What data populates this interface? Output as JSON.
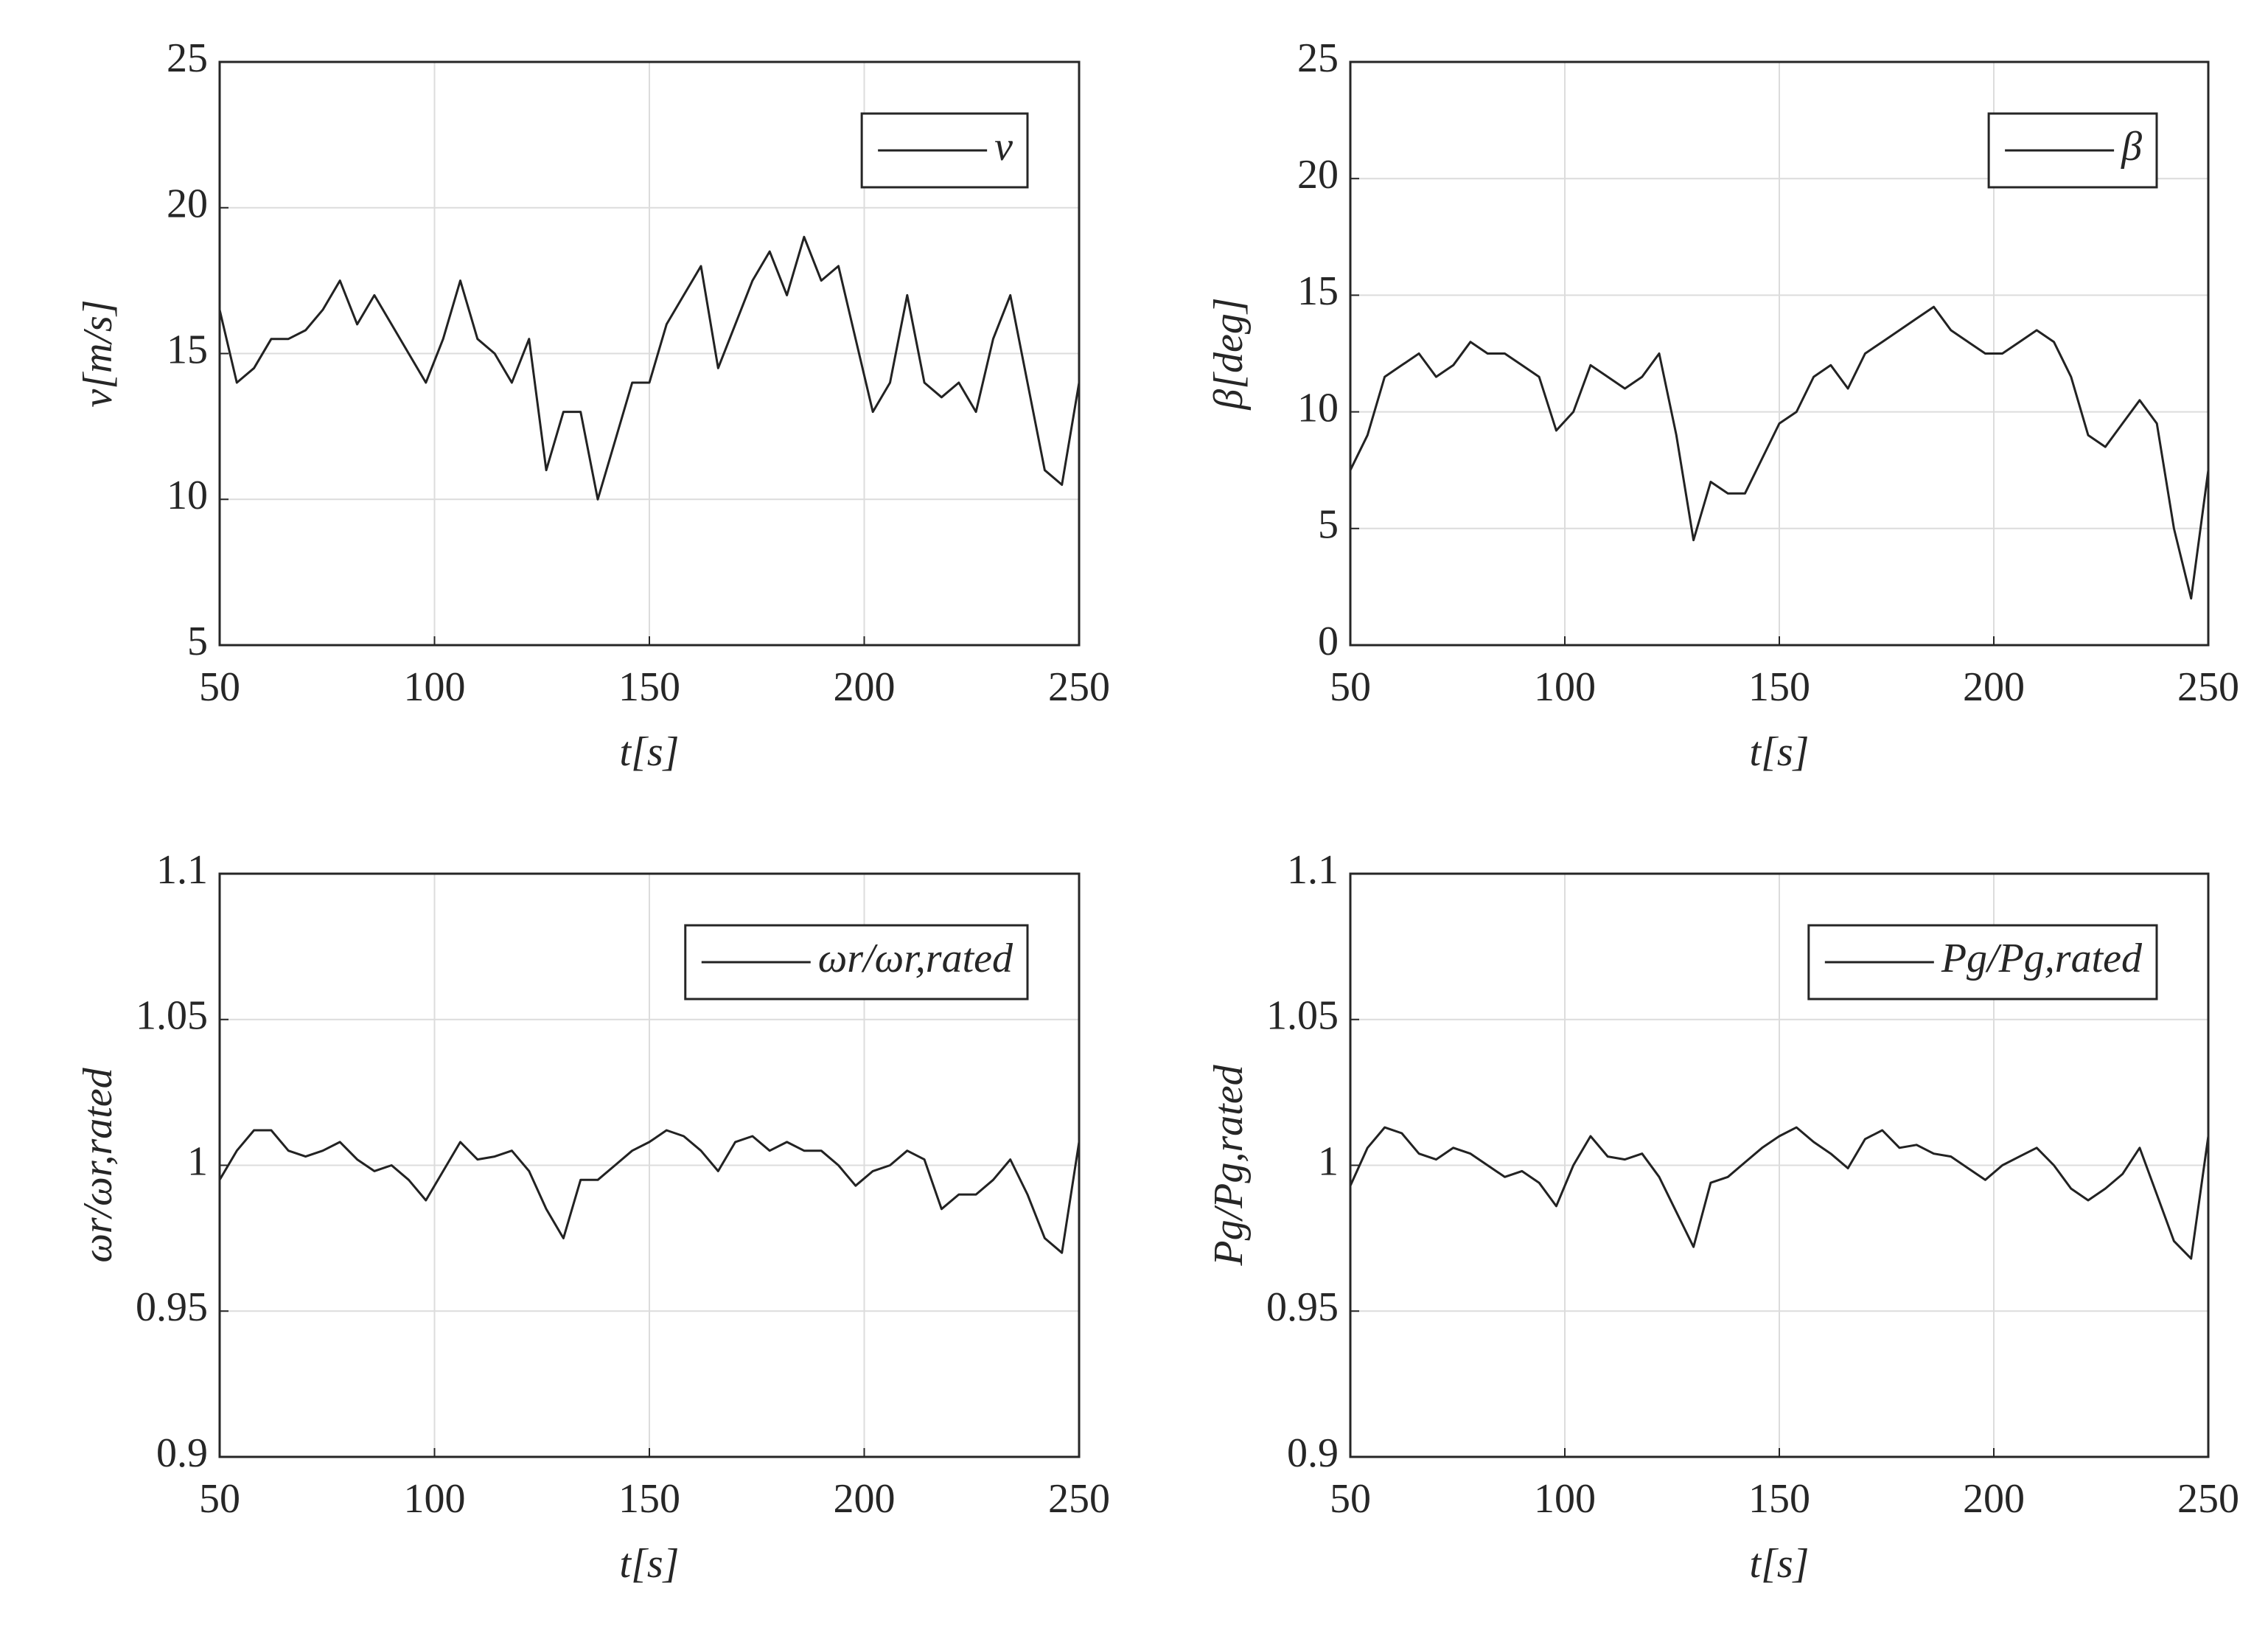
{
  "charts": [
    {
      "type": "line",
      "xlabel": "t[s]",
      "ylabel": "v[m/s]",
      "xlim": [
        50,
        250
      ],
      "ylim": [
        5,
        25
      ],
      "xticks": [
        50,
        100,
        150,
        200,
        250
      ],
      "yticks": [
        5,
        10,
        15,
        20,
        25
      ],
      "grid": true,
      "legend": "northeast",
      "x": [
        50,
        54,
        58,
        62,
        66,
        70,
        74,
        78,
        82,
        86,
        90,
        94,
        98,
        102,
        106,
        110,
        114,
        118,
        122,
        126,
        130,
        134,
        138,
        142,
        146,
        150,
        154,
        158,
        162,
        166,
        170,
        174,
        178,
        182,
        186,
        190,
        194,
        198,
        202,
        206,
        210,
        214,
        218,
        222,
        226,
        230,
        234,
        238,
        242,
        246,
        250
      ],
      "series": [
        {
          "name": "v",
          "color": "#222222",
          "values": [
            16.5,
            14,
            14.5,
            15.5,
            15.5,
            15.8,
            16.5,
            17.5,
            16,
            17,
            16,
            15,
            14,
            15.5,
            17.5,
            15.5,
            15,
            14,
            15.5,
            11,
            13,
            13,
            10,
            12,
            14,
            14,
            16,
            17,
            18,
            14.5,
            16,
            17.5,
            18.5,
            17,
            19,
            17.5,
            18,
            15.5,
            13,
            14,
            17,
            14,
            13.5,
            14,
            13,
            15.5,
            17,
            14,
            11,
            10.5,
            14
          ]
        }
      ]
    },
    {
      "type": "line",
      "xlabel": "t[s]",
      "ylabel": "β[deg]",
      "xlim": [
        50,
        250
      ],
      "ylim": [
        0,
        25
      ],
      "xticks": [
        50,
        100,
        150,
        200,
        250
      ],
      "yticks": [
        0,
        5,
        10,
        15,
        20,
        25
      ],
      "grid": true,
      "legend": "northeast",
      "x": [
        50,
        54,
        58,
        62,
        66,
        70,
        74,
        78,
        82,
        86,
        90,
        94,
        98,
        102,
        106,
        110,
        114,
        118,
        122,
        126,
        130,
        134,
        138,
        142,
        146,
        150,
        154,
        158,
        162,
        166,
        170,
        174,
        178,
        182,
        186,
        190,
        194,
        198,
        202,
        206,
        210,
        214,
        218,
        222,
        226,
        230,
        234,
        238,
        242,
        246,
        250
      ],
      "series": [
        {
          "name": "β",
          "color": "#222222",
          "values": [
            7.5,
            9,
            11.5,
            12,
            12.5,
            11.5,
            12,
            13,
            12.5,
            12.5,
            12,
            11.5,
            9.2,
            10,
            12,
            11.5,
            11,
            11.5,
            12.5,
            9,
            4.5,
            7,
            6.5,
            6.5,
            8,
            9.5,
            10,
            11.5,
            12,
            11,
            12.5,
            13,
            13.5,
            14,
            14.5,
            13.5,
            13,
            12.5,
            12.5,
            13,
            13.5,
            13,
            11.5,
            9,
            8.5,
            9.5,
            10.5,
            9.5,
            5,
            2,
            7.5
          ]
        }
      ]
    },
    {
      "type": "line",
      "xlabel": "t[s]",
      "ylabel": "ωr/ωr,rated",
      "xlim": [
        50,
        250
      ],
      "ylim": [
        0.9,
        1.1
      ],
      "xticks": [
        50,
        100,
        150,
        200,
        250
      ],
      "yticks": [
        0.9,
        0.95,
        1,
        1.05,
        1.1
      ],
      "grid": true,
      "legend": "northeast",
      "x": [
        50,
        54,
        58,
        62,
        66,
        70,
        74,
        78,
        82,
        86,
        90,
        94,
        98,
        102,
        106,
        110,
        114,
        118,
        122,
        126,
        130,
        134,
        138,
        142,
        146,
        150,
        154,
        158,
        162,
        166,
        170,
        174,
        178,
        182,
        186,
        190,
        194,
        198,
        202,
        206,
        210,
        214,
        218,
        222,
        226,
        230,
        234,
        238,
        242,
        246,
        250
      ],
      "series": [
        {
          "name": "ωr/ωr,rated",
          "color": "#222222",
          "values": [
            0.995,
            1.005,
            1.012,
            1.012,
            1.005,
            1.003,
            1.005,
            1.008,
            1.002,
            0.998,
            1,
            0.995,
            0.988,
            0.998,
            1.008,
            1.002,
            1.003,
            1.005,
            0.998,
            0.985,
            0.975,
            0.995,
            0.995,
            1,
            1.005,
            1.008,
            1.012,
            1.01,
            1.005,
            0.998,
            1.008,
            1.01,
            1.005,
            1.008,
            1.005,
            1.005,
            1,
            0.993,
            0.998,
            1,
            1.005,
            1.002,
            0.985,
            0.99,
            0.99,
            0.995,
            1.002,
            0.99,
            0.975,
            0.97,
            1.008
          ]
        }
      ]
    },
    {
      "type": "line",
      "xlabel": "t[s]",
      "ylabel": "Pg/Pg,rated",
      "xlim": [
        50,
        250
      ],
      "ylim": [
        0.9,
        1.1
      ],
      "xticks": [
        50,
        100,
        150,
        200,
        250
      ],
      "yticks": [
        0.9,
        0.95,
        1,
        1.05,
        1.1
      ],
      "grid": true,
      "legend": "northeast",
      "x": [
        50,
        54,
        58,
        62,
        66,
        70,
        74,
        78,
        82,
        86,
        90,
        94,
        98,
        102,
        106,
        110,
        114,
        118,
        122,
        126,
        130,
        134,
        138,
        142,
        146,
        150,
        154,
        158,
        162,
        166,
        170,
        174,
        178,
        182,
        186,
        190,
        194,
        198,
        202,
        206,
        210,
        214,
        218,
        222,
        226,
        230,
        234,
        238,
        242,
        246,
        250
      ],
      "series": [
        {
          "name": "Pg/Pg,rated",
          "color": "#222222",
          "values": [
            0.993,
            1.006,
            1.013,
            1.011,
            1.004,
            1.002,
            1.006,
            1.004,
            1,
            0.996,
            0.998,
            0.994,
            0.986,
            1,
            1.01,
            1.003,
            1.002,
            1.004,
            0.996,
            0.984,
            0.972,
            0.994,
            0.996,
            1.001,
            1.006,
            1.01,
            1.013,
            1.008,
            1.004,
            0.999,
            1.009,
            1.012,
            1.006,
            1.007,
            1.004,
            1.003,
            0.999,
            0.995,
            1,
            1.003,
            1.006,
            1,
            0.992,
            0.988,
            0.992,
            0.997,
            1.006,
            0.99,
            0.974,
            0.968,
            1.01
          ]
        }
      ]
    }
  ]
}
